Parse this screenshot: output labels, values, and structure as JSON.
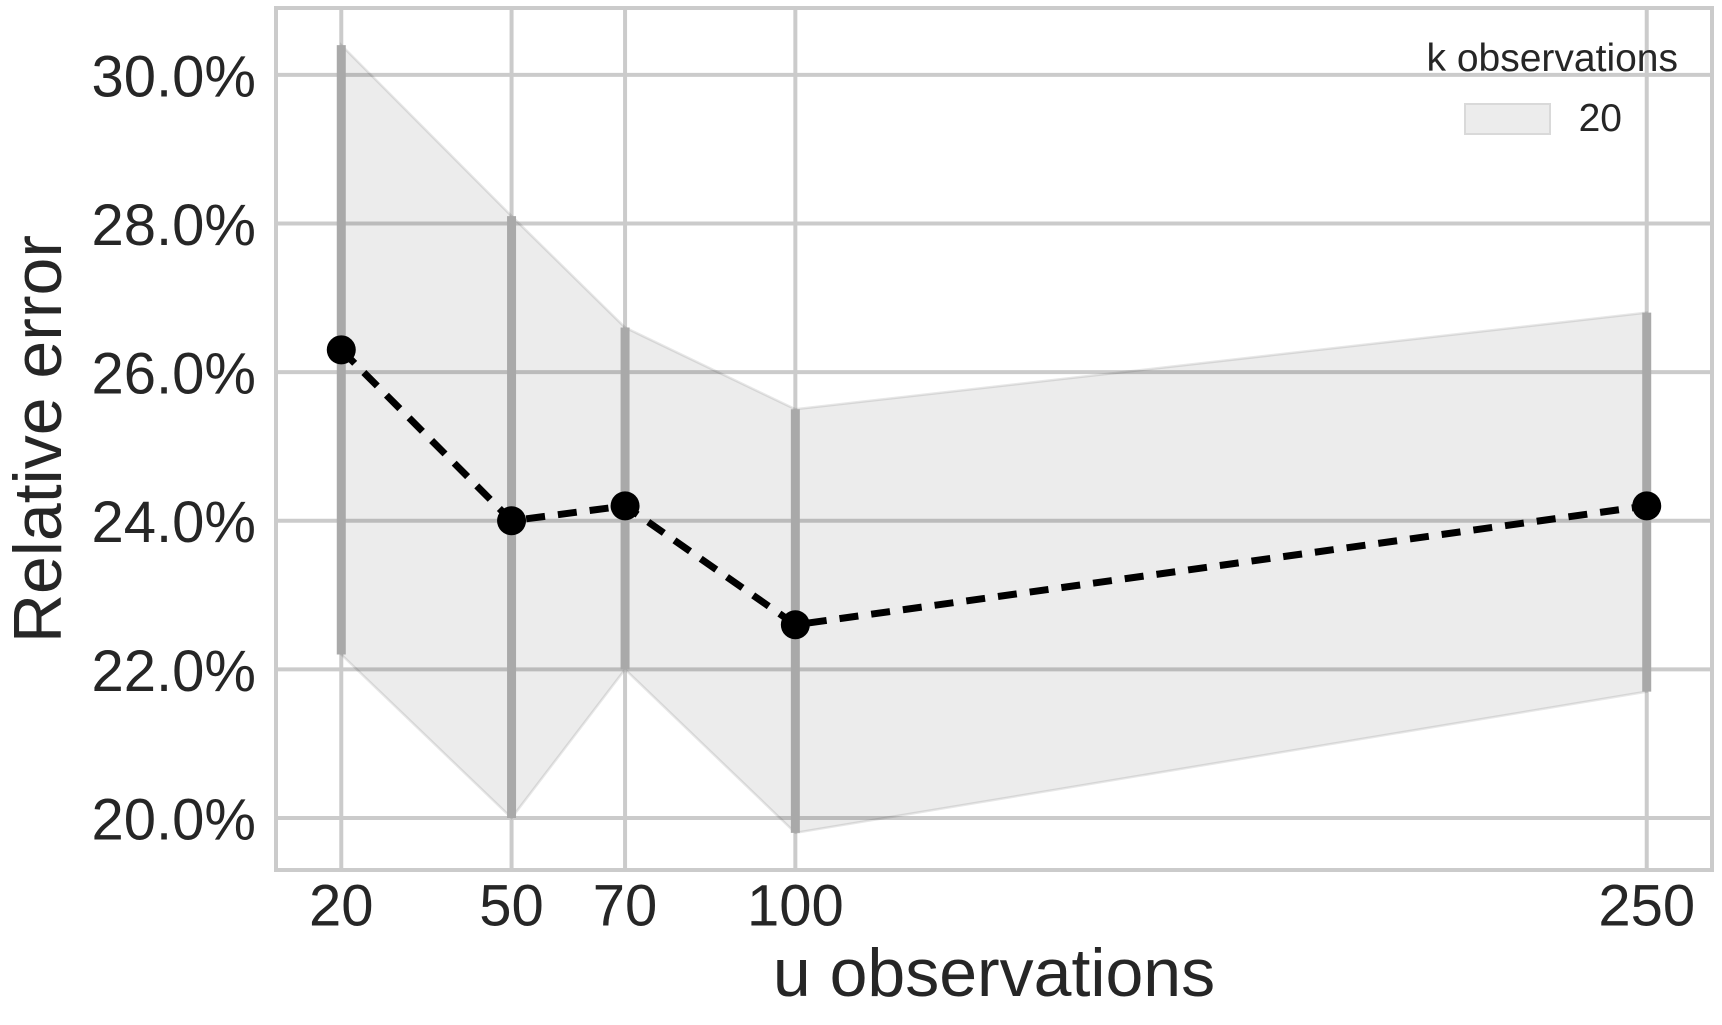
{
  "figure": {
    "background": "#ffffff",
    "text_color": "#262626"
  },
  "chart_data": {
    "type": "line",
    "title": "",
    "xlabel": "u observations",
    "ylabel": "Relative error",
    "unit": "%",
    "x": [
      20,
      50,
      70,
      100,
      250
    ],
    "series": [
      {
        "name": "20",
        "values": [
          26.3,
          24.0,
          24.2,
          22.6,
          24.2
        ],
        "ci_lower": [
          22.2,
          20.0,
          22.0,
          19.8,
          21.7
        ],
        "ci_upper": [
          30.4,
          28.1,
          26.6,
          25.5,
          26.8
        ],
        "line_style": "dashed",
        "marker": "circle",
        "color": "#000000"
      }
    ],
    "x_ticks": [
      20,
      50,
      70,
      100,
      250
    ],
    "x_tick_labels": [
      "20",
      "50",
      "70",
      "100",
      "250"
    ],
    "y_ticks": [
      20,
      22,
      24,
      26,
      28,
      30
    ],
    "y_tick_labels": [
      "20.0%",
      "22.0%",
      "24.0%",
      "26.0%",
      "28.0%",
      "30.0%"
    ],
    "xlim": [
      8.5,
      261.5
    ],
    "ylim": [
      19.3,
      30.9
    ],
    "grid": true,
    "legend": {
      "title": "k observations",
      "position": "upper right",
      "entries": [
        {
          "label": "20",
          "swatch": "band"
        }
      ]
    },
    "colors": {
      "grid": "#cbcbcb",
      "spine": "#cbcbcb",
      "band_fill": "rgba(0,0,0,0.075)",
      "band_edge": "rgba(0,0,0,0.095)",
      "errorbar": "#a9a9a9",
      "line": "#000000",
      "tick_text": "#262626"
    }
  }
}
